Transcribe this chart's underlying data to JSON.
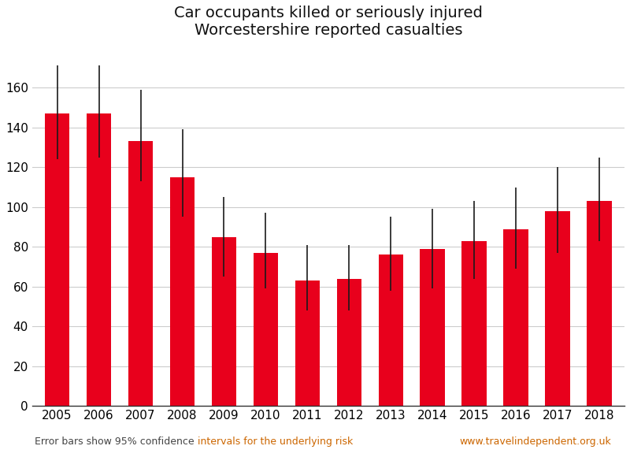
{
  "title": "Car occupants killed or seriously injured\nWorcestershire reported casualties",
  "years": [
    2005,
    2006,
    2007,
    2008,
    2009,
    2010,
    2011,
    2012,
    2013,
    2014,
    2015,
    2016,
    2017,
    2018
  ],
  "values": [
    147,
    147,
    133,
    115,
    85,
    77,
    63,
    64,
    76,
    79,
    83,
    89,
    98,
    103
  ],
  "err_lower": [
    23,
    22,
    20,
    20,
    20,
    18,
    15,
    16,
    18,
    20,
    19,
    20,
    21,
    20
  ],
  "err_upper": [
    24,
    24,
    26,
    24,
    20,
    20,
    18,
    17,
    19,
    20,
    20,
    21,
    22,
    22
  ],
  "bar_color": "#e8001c",
  "error_color": "#1a1a1a",
  "ylim": [
    0,
    180
  ],
  "yticks": [
    0,
    20,
    40,
    60,
    80,
    100,
    120,
    140,
    160
  ],
  "grid_color": "#cccccc",
  "background_color": "#ffffff",
  "title_fontsize": 14,
  "tick_fontsize": 11,
  "footnote_text_black": "Error bars show 95% confidence ",
  "footnote_text_orange": "intervals for the underlying risk",
  "footnote_right": "www.travelindependent.org.uk",
  "footnote_color_orange": "#cc6600",
  "footnote_color_black": "#444444",
  "footnote_fontsize": 9
}
